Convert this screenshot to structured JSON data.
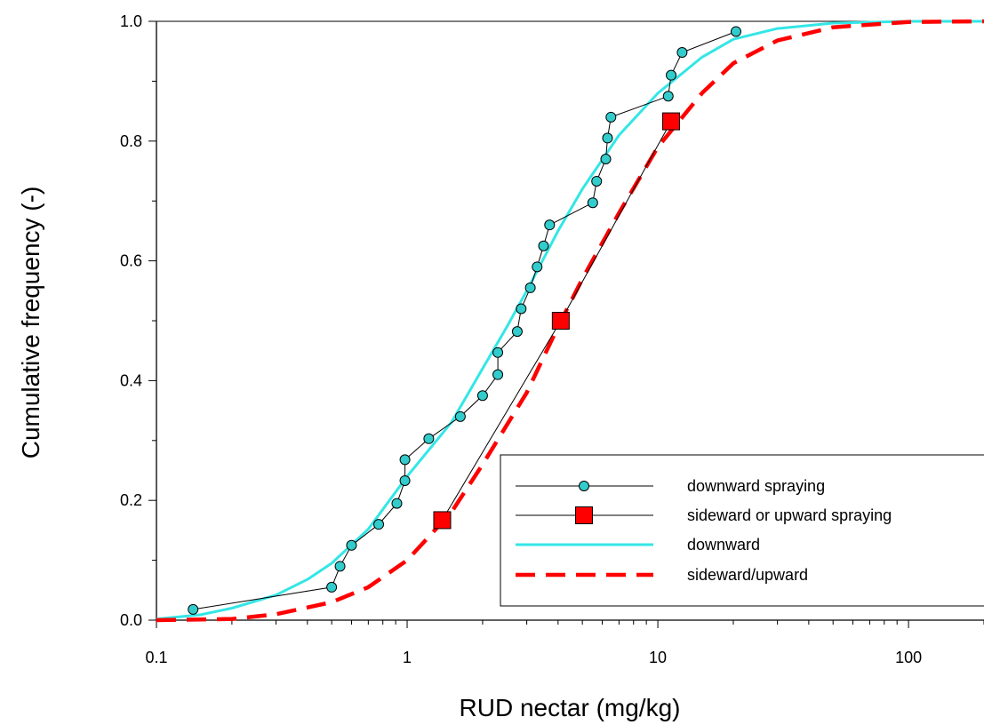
{
  "chart_data": {
    "type": "line",
    "title": "",
    "xlabel": "RUD nectar (mg/kg)",
    "ylabel": "Cumulative frequency (-)",
    "xscale": "log",
    "xlim": [
      0.1,
      200
    ],
    "ylim": [
      0,
      1.0
    ],
    "x_ticks": [
      {
        "value": 0.1,
        "label": "0.1"
      },
      {
        "value": 1,
        "label": "1"
      },
      {
        "value": 10,
        "label": "10"
      },
      {
        "value": 100,
        "label": "100"
      }
    ],
    "y_ticks": [
      {
        "value": 0.0,
        "label": "0.0"
      },
      {
        "value": 0.2,
        "label": "0.2"
      },
      {
        "value": 0.4,
        "label": "0.4"
      },
      {
        "value": 0.6,
        "label": "0.6"
      },
      {
        "value": 0.8,
        "label": "0.8"
      },
      {
        "value": 1.0,
        "label": "1.0"
      }
    ],
    "grid": false,
    "legend_position": "bottom-right",
    "series": [
      {
        "name": "downward spraying",
        "kind": "empirical",
        "marker": "circle",
        "color": "#33cccc",
        "line_color": "#000000",
        "points": [
          {
            "x": 0.14,
            "y": 0.018
          },
          {
            "x": 0.5,
            "y": 0.055
          },
          {
            "x": 0.54,
            "y": 0.09
          },
          {
            "x": 0.6,
            "y": 0.125
          },
          {
            "x": 0.77,
            "y": 0.16
          },
          {
            "x": 0.91,
            "y": 0.195
          },
          {
            "x": 0.98,
            "y": 0.233
          },
          {
            "x": 0.98,
            "y": 0.268
          },
          {
            "x": 1.22,
            "y": 0.303
          },
          {
            "x": 1.63,
            "y": 0.34
          },
          {
            "x": 2.0,
            "y": 0.375
          },
          {
            "x": 2.3,
            "y": 0.41
          },
          {
            "x": 2.3,
            "y": 0.447
          },
          {
            "x": 2.75,
            "y": 0.482
          },
          {
            "x": 2.85,
            "y": 0.52
          },
          {
            "x": 3.1,
            "y": 0.555
          },
          {
            "x": 3.3,
            "y": 0.59
          },
          {
            "x": 3.5,
            "y": 0.625
          },
          {
            "x": 3.7,
            "y": 0.66
          },
          {
            "x": 5.5,
            "y": 0.697
          },
          {
            "x": 5.7,
            "y": 0.733
          },
          {
            "x": 6.2,
            "y": 0.77
          },
          {
            "x": 6.3,
            "y": 0.805
          },
          {
            "x": 6.5,
            "y": 0.84
          },
          {
            "x": 11.0,
            "y": 0.875
          },
          {
            "x": 11.3,
            "y": 0.91
          },
          {
            "x": 12.5,
            "y": 0.948
          },
          {
            "x": 20.5,
            "y": 0.983
          }
        ]
      },
      {
        "name": "sideward or upward spraying",
        "kind": "empirical",
        "marker": "square",
        "color": "#ff0000",
        "line_color": "#000000",
        "points": [
          {
            "x": 1.38,
            "y": 0.167
          },
          {
            "x": 4.1,
            "y": 0.5
          },
          {
            "x": 11.3,
            "y": 0.833
          }
        ]
      },
      {
        "name": "downward",
        "kind": "fitted",
        "dash": "solid",
        "color": "#33e6e6",
        "points": [
          {
            "x": 0.1,
            "y": 0.002
          },
          {
            "x": 0.15,
            "y": 0.009
          },
          {
            "x": 0.2,
            "y": 0.02
          },
          {
            "x": 0.3,
            "y": 0.042
          },
          {
            "x": 0.4,
            "y": 0.068
          },
          {
            "x": 0.5,
            "y": 0.095
          },
          {
            "x": 0.7,
            "y": 0.152
          },
          {
            "x": 1.0,
            "y": 0.24
          },
          {
            "x": 1.5,
            "y": 0.33
          },
          {
            "x": 2.0,
            "y": 0.42
          },
          {
            "x": 2.5,
            "y": 0.49
          },
          {
            "x": 3.0,
            "y": 0.55
          },
          {
            "x": 4.0,
            "y": 0.65
          },
          {
            "x": 5.0,
            "y": 0.72
          },
          {
            "x": 7.0,
            "y": 0.81
          },
          {
            "x": 10.0,
            "y": 0.88
          },
          {
            "x": 15.0,
            "y": 0.94
          },
          {
            "x": 20.0,
            "y": 0.97
          },
          {
            "x": 30.0,
            "y": 0.988
          },
          {
            "x": 50.0,
            "y": 0.997
          },
          {
            "x": 100.0,
            "y": 1.0
          },
          {
            "x": 200.0,
            "y": 1.0
          }
        ]
      },
      {
        "name": "sideward/upward",
        "kind": "fitted",
        "dash": "dashed",
        "color": "#ff0000",
        "points": [
          {
            "x": 0.1,
            "y": 0.0
          },
          {
            "x": 0.2,
            "y": 0.002
          },
          {
            "x": 0.3,
            "y": 0.01
          },
          {
            "x": 0.5,
            "y": 0.03
          },
          {
            "x": 0.7,
            "y": 0.055
          },
          {
            "x": 1.0,
            "y": 0.1
          },
          {
            "x": 1.5,
            "y": 0.18
          },
          {
            "x": 2.0,
            "y": 0.26
          },
          {
            "x": 3.0,
            "y": 0.38
          },
          {
            "x": 4.0,
            "y": 0.49
          },
          {
            "x": 5.0,
            "y": 0.57
          },
          {
            "x": 7.0,
            "y": 0.68
          },
          {
            "x": 10.0,
            "y": 0.79
          },
          {
            "x": 15.0,
            "y": 0.88
          },
          {
            "x": 20.0,
            "y": 0.93
          },
          {
            "x": 30.0,
            "y": 0.968
          },
          {
            "x": 50.0,
            "y": 0.99
          },
          {
            "x": 100.0,
            "y": 0.999
          },
          {
            "x": 200.0,
            "y": 1.0
          }
        ]
      }
    ]
  }
}
